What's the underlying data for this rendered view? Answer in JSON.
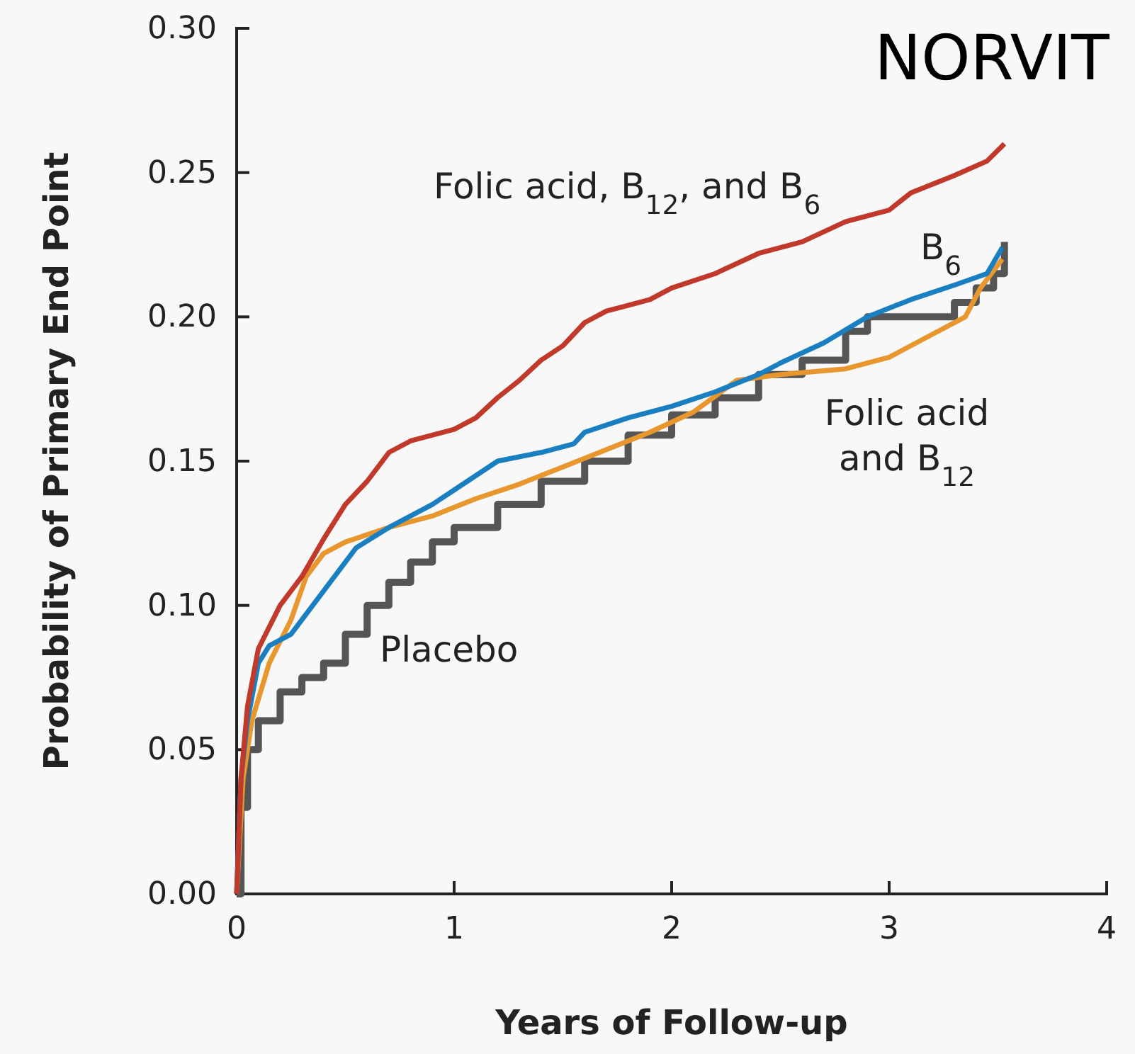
{
  "chart_data": {
    "type": "line",
    "title": "NORVIT",
    "xlabel": "Years of Follow-up",
    "ylabel": "Probability of Primary End Point",
    "xlim": [
      0,
      4
    ],
    "xticks": [
      0,
      1,
      2,
      3,
      4
    ],
    "ylim": [
      0,
      0.3
    ],
    "yticks": [
      {
        "value": 0,
        "label": "0.00"
      },
      {
        "value": 0.05,
        "label": "0.05"
      },
      {
        "value": 0.1,
        "label": "0.10"
      },
      {
        "value": 0.15,
        "label": "0.15"
      },
      {
        "value": 0.2,
        "label": "0.20"
      },
      {
        "value": 0.25,
        "label": "0.25"
      },
      {
        "value": 0.3,
        "label": "0.30"
      }
    ],
    "grid": false,
    "legend": false,
    "series": [
      {
        "name": "Folic acid, B$_{12}$, and B$_{6}$",
        "color": "#c0392b",
        "x": [
          0,
          0.02,
          0.05,
          0.1,
          0.2,
          0.3,
          0.4,
          0.5,
          0.6,
          0.7,
          0.8,
          1.0,
          1.1,
          1.2,
          1.3,
          1.4,
          1.5,
          1.6,
          1.7,
          1.8,
          1.9,
          2.0,
          2.2,
          2.4,
          2.6,
          2.8,
          3.0,
          3.1,
          3.3,
          3.45,
          3.53
        ],
        "values": [
          0,
          0.04,
          0.065,
          0.085,
          0.1,
          0.11,
          0.123,
          0.135,
          0.143,
          0.153,
          0.157,
          0.161,
          0.165,
          0.172,
          0.178,
          0.185,
          0.19,
          0.198,
          0.202,
          0.204,
          0.206,
          0.21,
          0.215,
          0.222,
          0.226,
          0.233,
          0.237,
          0.243,
          0.249,
          0.254,
          0.26
        ]
      },
      {
        "name": "B$_{6}$",
        "color": "#1a7fc1",
        "x": [
          0,
          0.02,
          0.05,
          0.1,
          0.15,
          0.25,
          0.35,
          0.45,
          0.55,
          0.7,
          0.9,
          1.0,
          1.2,
          1.4,
          1.55,
          1.6,
          1.8,
          2.0,
          2.2,
          2.4,
          2.5,
          2.7,
          2.9,
          3.1,
          3.3,
          3.45,
          3.52
        ],
        "values": [
          0,
          0.04,
          0.06,
          0.08,
          0.086,
          0.09,
          0.1,
          0.11,
          0.12,
          0.127,
          0.135,
          0.14,
          0.15,
          0.153,
          0.156,
          0.16,
          0.165,
          0.169,
          0.174,
          0.18,
          0.184,
          0.191,
          0.2,
          0.206,
          0.211,
          0.215,
          0.224
        ]
      },
      {
        "name": "Folic acid and B$_{12}$",
        "color": "#e8962e",
        "x": [
          0,
          0.03,
          0.07,
          0.15,
          0.25,
          0.32,
          0.4,
          0.5,
          0.7,
          0.9,
          1.1,
          1.3,
          1.5,
          1.7,
          1.9,
          2.1,
          2.3,
          2.5,
          2.8,
          3.0,
          3.2,
          3.35,
          3.42,
          3.52
        ],
        "values": [
          0,
          0.04,
          0.06,
          0.08,
          0.095,
          0.11,
          0.118,
          0.122,
          0.127,
          0.131,
          0.137,
          0.142,
          0.148,
          0.154,
          0.16,
          0.167,
          0.178,
          0.18,
          0.182,
          0.186,
          0.194,
          0.2,
          0.21,
          0.22
        ]
      },
      {
        "name": "Placebo",
        "type": "step",
        "color": "#555555",
        "x": [
          0,
          0.02,
          0.05,
          0.1,
          0.2,
          0.3,
          0.4,
          0.5,
          0.6,
          0.7,
          0.8,
          0.9,
          1.0,
          1.2,
          1.4,
          1.6,
          1.8,
          2.0,
          2.2,
          2.4,
          2.6,
          2.8,
          2.9,
          3.3,
          3.4,
          3.48,
          3.53
        ],
        "values": [
          0,
          0.03,
          0.05,
          0.06,
          0.07,
          0.075,
          0.08,
          0.09,
          0.1,
          0.108,
          0.115,
          0.122,
          0.127,
          0.135,
          0.143,
          0.15,
          0.159,
          0.166,
          0.172,
          0.18,
          0.185,
          0.195,
          0.2,
          0.205,
          0.21,
          0.215,
          0.226
        ]
      }
    ]
  }
}
